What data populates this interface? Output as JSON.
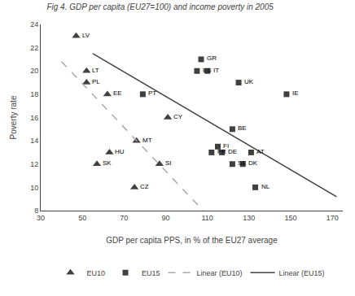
{
  "chart_data": {
    "type": "scatter",
    "title": "Fig 4. GDP per capita (EU27=100) and income poverty in 2005",
    "xlabel": "GDP per capita PPS, in % of the EU27 average",
    "ylabel": "Poverty rate",
    "xlim": [
      30,
      175
    ],
    "ylim": [
      8,
      24
    ],
    "xticks": [
      30,
      50,
      70,
      90,
      110,
      130,
      150,
      170
    ],
    "yticks": [
      8,
      10,
      12,
      14,
      16,
      18,
      20,
      22,
      24
    ],
    "grid": false,
    "legend": "bottom",
    "series": [
      {
        "name": "EU10",
        "type": "scatter",
        "marker": "triangle",
        "color": "#404040",
        "labels": [
          "LV",
          "LT",
          "PL",
          "EE",
          "CY",
          "MT",
          "HU",
          "SK",
          "SI",
          "CZ"
        ],
        "x": [
          47,
          52,
          52,
          62,
          91,
          76,
          63,
          57,
          87,
          75
        ],
        "values": [
          23,
          20,
          19,
          18,
          16,
          14,
          13,
          12,
          12,
          10
        ]
      },
      {
        "name": "EU15",
        "type": "scatter",
        "marker": "square",
        "color": "#404040",
        "labels": [
          "GR",
          "ES",
          "IT",
          "PT",
          "UK",
          "IE",
          "BE",
          "FI",
          "FR",
          "DE",
          "AT",
          "SE",
          "DK",
          "NL"
        ],
        "x": [
          107,
          105,
          110,
          79,
          125,
          148,
          122,
          115,
          112,
          117,
          131,
          122,
          127,
          133
        ],
        "values": [
          21,
          20,
          20,
          18,
          19,
          18,
          15,
          13.5,
          13,
          13,
          13,
          12,
          12,
          10
        ]
      },
      {
        "name": "Linear (EU10)",
        "type": "line",
        "line_style": "dashed",
        "color": "#aaaaaa",
        "x": [
          40,
          108
        ],
        "values": [
          20.8,
          8.0
        ]
      },
      {
        "name": "Linear (EU15)",
        "type": "line",
        "line_style": "solid",
        "color": "#404040",
        "x": [
          55,
          172
        ],
        "values": [
          21.5,
          9.2
        ]
      }
    ]
  }
}
